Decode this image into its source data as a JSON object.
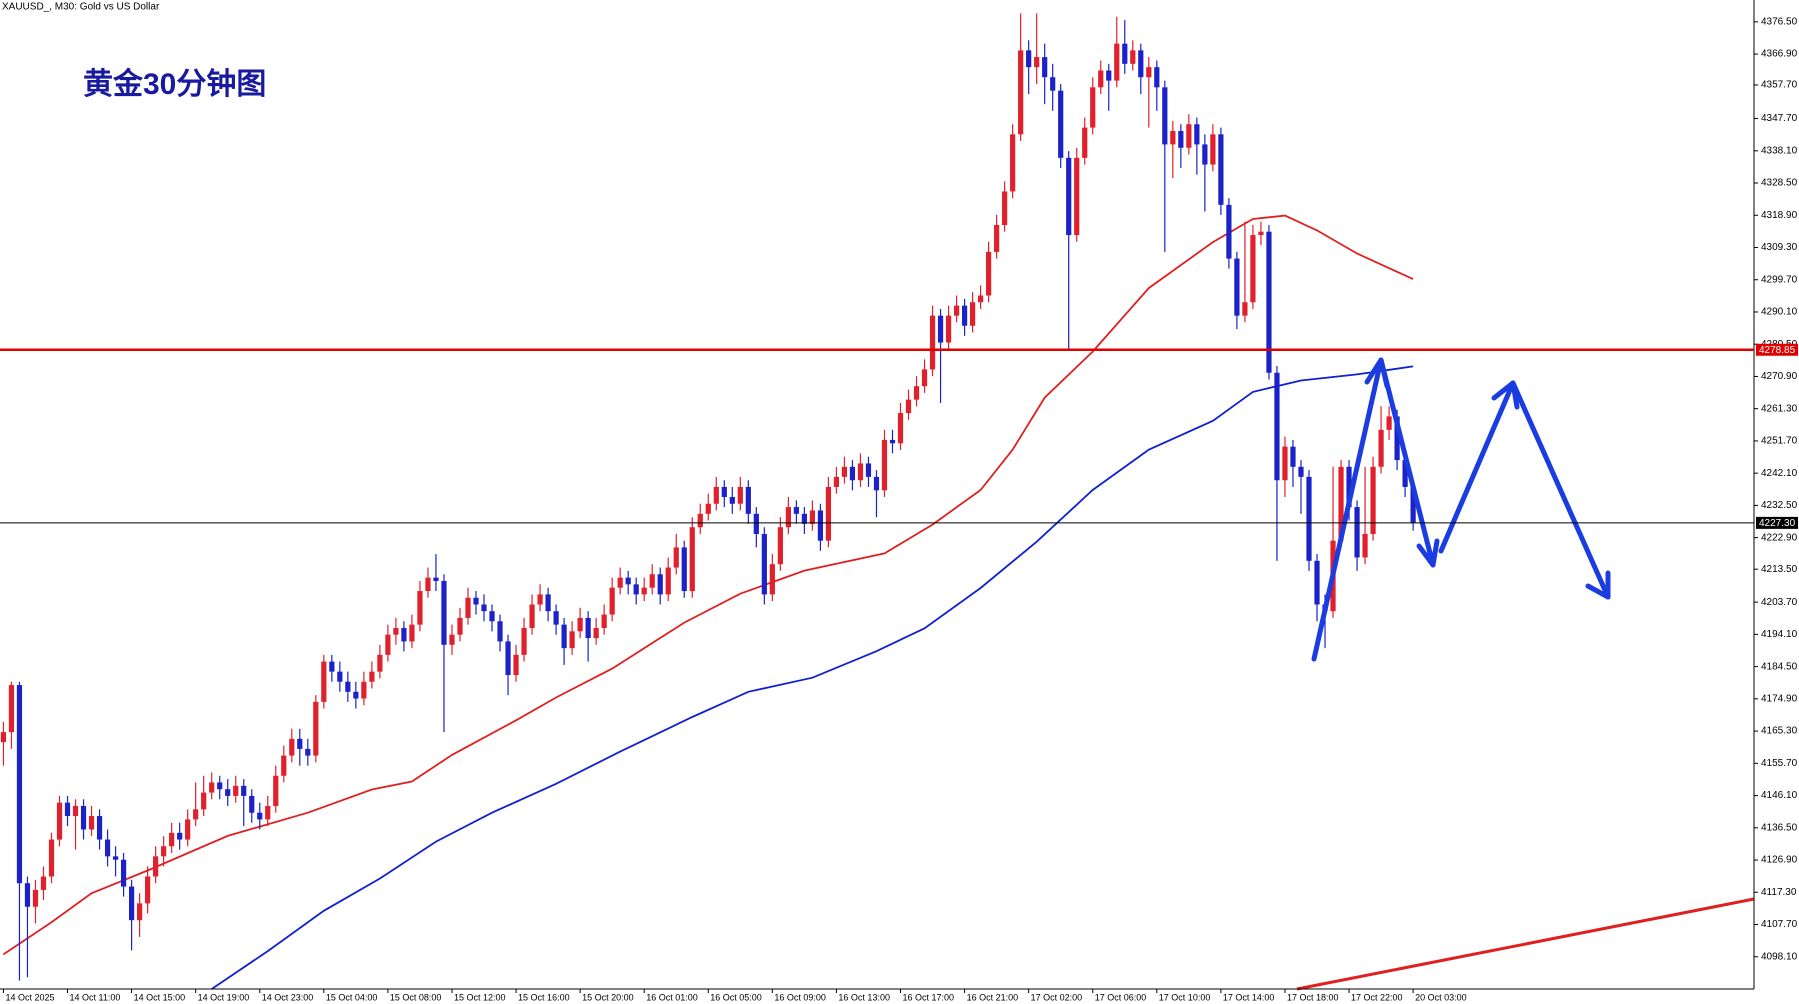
{
  "chart_data": {
    "type": "candlestick",
    "symbol_info": "XAUUSD_, M30:  Gold vs US Dollar",
    "title": "黄金30分钟图",
    "up_color": "#e0202a",
    "down_color": "#1a22c8",
    "categories": [
      "14 Oct 2025",
      null,
      null,
      null,
      null,
      null,
      null,
      null,
      "14 Oct 11:00",
      null,
      null,
      null,
      null,
      null,
      null,
      null,
      "14 Oct 15:00",
      null,
      null,
      null,
      null,
      null,
      null,
      null,
      "14 Oct 19:00",
      null,
      null,
      null,
      null,
      null,
      null,
      null,
      "14 Oct 23:00",
      null,
      null,
      null,
      null,
      null,
      null,
      null,
      "15 Oct 04:00",
      null,
      null,
      null,
      null,
      null,
      null,
      null,
      "15 Oct 08:00",
      null,
      null,
      null,
      null,
      null,
      null,
      null,
      "15 Oct 12:00",
      null,
      null,
      null,
      null,
      null,
      null,
      null,
      "15 Oct 16:00",
      null,
      null,
      null,
      null,
      null,
      null,
      null,
      "15 Oct 20:00",
      null,
      null,
      null,
      null,
      null,
      null,
      null,
      "16 Oct 01:00",
      null,
      null,
      null,
      null,
      null,
      null,
      null,
      "16 Oct 05:00",
      null,
      null,
      null,
      null,
      null,
      null,
      null,
      "16 Oct 09:00",
      null,
      null,
      null,
      null,
      null,
      null,
      null,
      "16 Oct 13:00",
      null,
      null,
      null,
      null,
      null,
      null,
      null,
      "16 Oct 17:00",
      null,
      null,
      null,
      null,
      null,
      null,
      null,
      "16 Oct 21:00",
      null,
      null,
      null,
      null,
      null,
      null,
      null,
      "17 Oct 02:00",
      null,
      null,
      null,
      null,
      null,
      null,
      null,
      "17 Oct 06:00",
      null,
      null,
      null,
      null,
      null,
      null,
      null,
      "17 Oct 10:00",
      null,
      null,
      null,
      null,
      null,
      null,
      null,
      "17 Oct 14:00",
      null,
      null,
      null,
      null,
      null,
      null,
      null,
      "17 Oct 18:00",
      null,
      null,
      null,
      null,
      null,
      null,
      null,
      "17 Oct 22:00",
      null,
      null,
      null,
      null,
      null,
      null,
      null,
      "20 Oct 03:00"
    ],
    "open": [
      4162,
      4165,
      4179,
      4120,
      4113,
      4118,
      4122,
      4133,
      4144,
      4140,
      4143,
      4136,
      4140,
      4133,
      4128,
      4127,
      4119,
      4109,
      4114,
      4122,
      4128,
      4131,
      4135,
      4133,
      4139,
      4142,
      4147,
      4150,
      4148,
      4146,
      4149,
      4146,
      4141,
      4139,
      4143,
      4152,
      4158,
      4163,
      4160,
      4158,
      4174,
      4186,
      4183,
      4180,
      4177,
      4175,
      4180,
      4183,
      4188,
      4194,
      4196,
      4192,
      4197,
      4207,
      4211,
      4210,
      4191,
      4194,
      4199,
      4205,
      4203,
      4201,
      4198,
      4192,
      4182,
      4188,
      4196,
      4203,
      4206,
      4201,
      4197,
      4190,
      4195,
      4199,
      4193,
      4196,
      4200,
      4208,
      4211,
      4209,
      4206,
      4208,
      4212,
      4206,
      4214,
      4220,
      4207,
      4226,
      4230,
      4233,
      4238,
      4235,
      4233,
      4238,
      4230,
      4224,
      4206,
      4215,
      4226,
      4232,
      4230,
      4227,
      4231,
      4222,
      4238,
      4241,
      4244,
      4240,
      4245,
      4241,
      4237,
      4252,
      4251,
      4260,
      4264,
      4268,
      4273,
      4289,
      4281,
      4289,
      4292,
      4286,
      4293,
      4295,
      4308,
      4316,
      4326,
      4343,
      4368,
      4363,
      4366,
      4360,
      4356,
      4336,
      4313,
      4336,
      4345,
      4357,
      4362,
      4359,
      4370,
      4364,
      4368,
      4360,
      4363,
      4357,
      4340,
      4344,
      4339,
      4346,
      4340,
      4334,
      4343,
      4322,
      4306,
      4289,
      4293,
      4313,
      4314,
      4272,
      4240,
      4250,
      4244,
      4241,
      4216,
      4203,
      4201,
      4222,
      4244,
      4232,
      4217,
      4224,
      4244,
      4255,
      4259,
      4246,
      4238
    ],
    "high": [
      4168,
      4180,
      4180,
      4122,
      4121,
      4125,
      4135,
      4146,
      4146,
      4145,
      4145,
      4143,
      4142,
      4136,
      4131,
      4129,
      4121,
      4117,
      4125,
      4131,
      4134,
      4138,
      4138,
      4142,
      4150,
      4152,
      4153,
      4152,
      4151,
      4152,
      4151,
      4148,
      4144,
      4146,
      4155,
      4161,
      4166,
      4166,
      4163,
      4176,
      4188,
      4188,
      4186,
      4183,
      4180,
      4183,
      4186,
      4191,
      4197,
      4199,
      4198,
      4200,
      4210,
      4214,
      4218,
      4212,
      4197,
      4202,
      4208,
      4207,
      4206,
      4203,
      4200,
      4194,
      4191,
      4199,
      4206,
      4209,
      4208,
      4203,
      4199,
      4198,
      4202,
      4201,
      4199,
      4203,
      4211,
      4214,
      4213,
      4211,
      4211,
      4215,
      4214,
      4217,
      4224,
      4222,
      4229,
      4233,
      4236,
      4241,
      4240,
      4238,
      4241,
      4240,
      4232,
      4226,
      4218,
      4229,
      4235,
      4234,
      4232,
      4234,
      4233,
      4241,
      4244,
      4247,
      4246,
      4248,
      4247,
      4243,
      4255,
      4255,
      4263,
      4267,
      4271,
      4276,
      4292,
      4291,
      4292,
      4295,
      4294,
      4296,
      4298,
      4311,
      4319,
      4329,
      4346,
      4379,
      4371,
      4379,
      4370,
      4364,
      4358,
      4338,
      4339,
      4348,
      4360,
      4365,
      4364,
      4378,
      4377,
      4371,
      4370,
      4366,
      4365,
      4359,
      4347,
      4346,
      4349,
      4348,
      4343,
      4346,
      4345,
      4324,
      4308,
      4317,
      4316,
      4317,
      4316,
      4274,
      4253,
      4252,
      4246,
      4243,
      4218,
      4206,
      4244,
      4246,
      4246,
      4234,
      4244,
      4247,
      4262,
      4262,
      4261,
      4249,
      4240
    ],
    "low": [
      4155,
      4160,
      4091,
      4092,
      4108,
      4115,
      4120,
      4131,
      4137,
      4130,
      4133,
      4134,
      4130,
      4125,
      4122,
      4116,
      4100,
      4104,
      4111,
      4120,
      4125,
      4129,
      4130,
      4131,
      4137,
      4140,
      4145,
      4145,
      4143,
      4144,
      4137,
      4138,
      4136,
      4137,
      4141,
      4150,
      4156,
      4155,
      4155,
      4156,
      4172,
      4180,
      4177,
      4174,
      4172,
      4173,
      4178,
      4181,
      4186,
      4191,
      4189,
      4190,
      4195,
      4205,
      4207,
      4165,
      4188,
      4192,
      4197,
      4200,
      4198,
      4195,
      4189,
      4176,
      4180,
      4186,
      4194,
      4201,
      4198,
      4194,
      4185,
      4188,
      4193,
      4186,
      4191,
      4194,
      4198,
      4206,
      4206,
      4203,
      4204,
      4206,
      4203,
      4204,
      4212,
      4205,
      4205,
      4224,
      4228,
      4231,
      4232,
      4230,
      4231,
      4227,
      4220,
      4203,
      4204,
      4213,
      4224,
      4227,
      4224,
      4225,
      4219,
      4220,
      4236,
      4239,
      4237,
      4238,
      4238,
      4229,
      4235,
      4248,
      4249,
      4258,
      4262,
      4266,
      4271,
      4263,
      4279,
      4287,
      4283,
      4284,
      4291,
      4293,
      4306,
      4314,
      4324,
      4341,
      4355,
      4358,
      4352,
      4350,
      4333,
      4279,
      4311,
      4334,
      4343,
      4355,
      4350,
      4357,
      4361,
      4362,
      4355,
      4345,
      4350,
      4308,
      4330,
      4333,
      4337,
      4331,
      4320,
      4332,
      4319,
      4303,
      4285,
      4287,
      4291,
      4310,
      4270,
      4216,
      4235,
      4238,
      4230,
      4213,
      4198,
      4190,
      4199,
      4220,
      4228,
      4213,
      4215,
      4222,
      4242,
      4252,
      4243,
      4235,
      4225
    ],
    "close": [
      4165,
      4179,
      4120,
      4113,
      4118,
      4122,
      4133,
      4144,
      4140,
      4143,
      4136,
      4140,
      4133,
      4128,
      4127,
      4119,
      4109,
      4114,
      4122,
      4128,
      4131,
      4135,
      4133,
      4139,
      4142,
      4147,
      4150,
      4148,
      4146,
      4149,
      4146,
      4141,
      4139,
      4143,
      4152,
      4158,
      4163,
      4160,
      4158,
      4174,
      4186,
      4183,
      4180,
      4177,
      4175,
      4180,
      4183,
      4188,
      4194,
      4196,
      4192,
      4197,
      4207,
      4211,
      4210,
      4191,
      4194,
      4199,
      4205,
      4203,
      4201,
      4198,
      4192,
      4182,
      4188,
      4196,
      4203,
      4206,
      4201,
      4197,
      4190,
      4195,
      4199,
      4193,
      4196,
      4200,
      4208,
      4211,
      4209,
      4206,
      4208,
      4212,
      4206,
      4214,
      4220,
      4207,
      4226,
      4230,
      4233,
      4238,
      4235,
      4233,
      4238,
      4230,
      4224,
      4206,
      4215,
      4226,
      4232,
      4230,
      4227,
      4231,
      4222,
      4238,
      4241,
      4244,
      4240,
      4245,
      4241,
      4237,
      4252,
      4251,
      4260,
      4264,
      4268,
      4273,
      4289,
      4281,
      4289,
      4292,
      4286,
      4293,
      4295,
      4308,
      4316,
      4326,
      4343,
      4368,
      4363,
      4366,
      4360,
      4356,
      4336,
      4313,
      4336,
      4345,
      4357,
      4362,
      4359,
      4370,
      4364,
      4368,
      4360,
      4363,
      4357,
      4340,
      4344,
      4339,
      4346,
      4340,
      4334,
      4343,
      4322,
      4306,
      4289,
      4293,
      4313,
      4314,
      4272,
      4240,
      4250,
      4244,
      4241,
      4216,
      4203,
      4201,
      4222,
      4244,
      4232,
      4217,
      4224,
      4244,
      4255,
      4259,
      4246,
      4238,
      4227.3
    ],
    "lines": [
      {
        "color": "#e02020",
        "x": [
          0,
          6,
          11,
          18,
          28,
          38,
          46,
          51,
          56,
          64,
          69,
          76,
          85,
          92,
          100,
          110,
          116,
          122,
          126,
          130,
          136,
          143,
          151,
          156,
          160,
          164,
          169,
          176
        ],
        "values": [
          4098.8,
          4108.4,
          4117.0,
          4123.8,
          4134.1,
          4141.0,
          4147.9,
          4150.3,
          4158.2,
          4168.5,
          4175.3,
          4183.9,
          4197.6,
          4206.2,
          4213.1,
          4218.2,
          4226.8,
          4237.1,
          4249.1,
          4264.6,
          4278.3,
          4297.2,
          4310.9,
          4317.8,
          4318.8,
          4314.4,
          4307.5,
          4299.9
        ]
      },
      {
        "color": "#1020d0",
        "x": [
          26,
          33,
          40,
          47,
          54,
          61,
          69,
          77,
          86,
          93,
          101,
          109,
          115,
          122,
          129,
          136,
          143,
          151,
          156,
          162,
          169,
          176
        ],
        "values": [
          4088.5,
          4099.8,
          4111.8,
          4121.4,
          4132.4,
          4141.0,
          4149.6,
          4159.2,
          4169.5,
          4177.0,
          4181.2,
          4189.1,
          4195.9,
          4207.9,
          4221.7,
          4237.1,
          4249.1,
          4257.7,
          4266.3,
          4269.7,
          4271.5,
          4273.9
        ]
      }
    ],
    "hlines": [
      {
        "value": 4278.85,
        "label": "4278.85",
        "color": "#e00000"
      },
      {
        "value": 4227.3,
        "label": "4227.30",
        "color": "#000000"
      }
    ],
    "xlim": [
      -0.43,
      218.56
    ],
    "ylim": [
      4088.5,
      4383.0
    ],
    "yticks": [
      {
        "value": 4376.5,
        "label": "4376.50"
      },
      {
        "value": 4366.9,
        "label": "4366.90"
      },
      {
        "value": 4357.7,
        "label": "4357.70"
      },
      {
        "value": 4347.7,
        "label": "4347.70"
      },
      {
        "value": 4338.1,
        "label": "4338.10"
      },
      {
        "value": 4328.5,
        "label": "4328.50"
      },
      {
        "value": 4318.9,
        "label": "4318.90"
      },
      {
        "value": 4309.3,
        "label": "4309.30"
      },
      {
        "value": 4299.7,
        "label": "4299.70"
      },
      {
        "value": 4290.1,
        "label": "4290.10"
      },
      {
        "value": 4280.5,
        "label": "4280.50"
      },
      {
        "value": 4270.9,
        "label": "4270.90"
      },
      {
        "value": 4261.3,
        "label": "4261.30"
      },
      {
        "value": 4251.7,
        "label": "4251.70"
      },
      {
        "value": 4242.1,
        "label": "4242.10"
      },
      {
        "value": 4232.5,
        "label": "4232.50"
      },
      {
        "value": 4222.9,
        "label": "4222.90"
      },
      {
        "value": 4213.5,
        "label": "4213.50"
      },
      {
        "value": 4203.7,
        "label": "4203.70"
      },
      {
        "value": 4194.1,
        "label": "4194.10"
      },
      {
        "value": 4184.5,
        "label": "4184.50"
      },
      {
        "value": 4174.9,
        "label": "4174.90"
      },
      {
        "value": 4165.3,
        "label": "4165.30"
      },
      {
        "value": 4155.7,
        "label": "4155.70"
      },
      {
        "value": 4146.1,
        "label": "4146.10"
      },
      {
        "value": 4136.5,
        "label": "4136.50"
      },
      {
        "value": 4126.9,
        "label": "4126.90"
      },
      {
        "value": 4117.3,
        "label": "4117.30"
      },
      {
        "value": 4107.7,
        "label": "4107.70"
      },
      {
        "value": 4098.1,
        "label": "4098.10"
      }
    ]
  }
}
